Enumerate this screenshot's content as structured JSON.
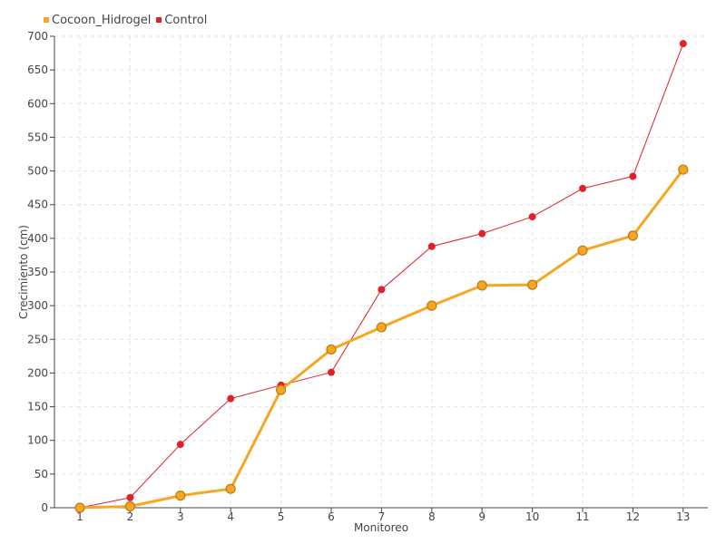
{
  "chart_data": {
    "type": "line",
    "title": "",
    "xlabel": "Monitoreo",
    "ylabel": "Crecimiento (cm)",
    "categories": [
      "1",
      "2",
      "3",
      "4",
      "5",
      "6",
      "7",
      "8",
      "9",
      "10",
      "11",
      "12",
      "13"
    ],
    "ylim": [
      0,
      700
    ],
    "yticks": [
      "0",
      "50",
      "100",
      "150",
      "200",
      "250",
      "300",
      "350",
      "400",
      "450",
      "500",
      "550",
      "600",
      "650",
      "700"
    ],
    "grid": true,
    "legend_position": "top-left",
    "series": [
      {
        "name": "Cocoon_Hidrogel",
        "color": "#F5A623",
        "values": [
          0,
          2,
          18,
          28,
          175,
          235,
          268,
          300,
          330,
          331,
          382,
          404,
          502
        ]
      },
      {
        "name": "Control",
        "color": "#E0202A",
        "values": [
          0,
          15,
          94,
          162,
          182,
          201,
          324,
          388,
          407,
          432,
          474,
          492,
          689
        ]
      }
    ]
  }
}
